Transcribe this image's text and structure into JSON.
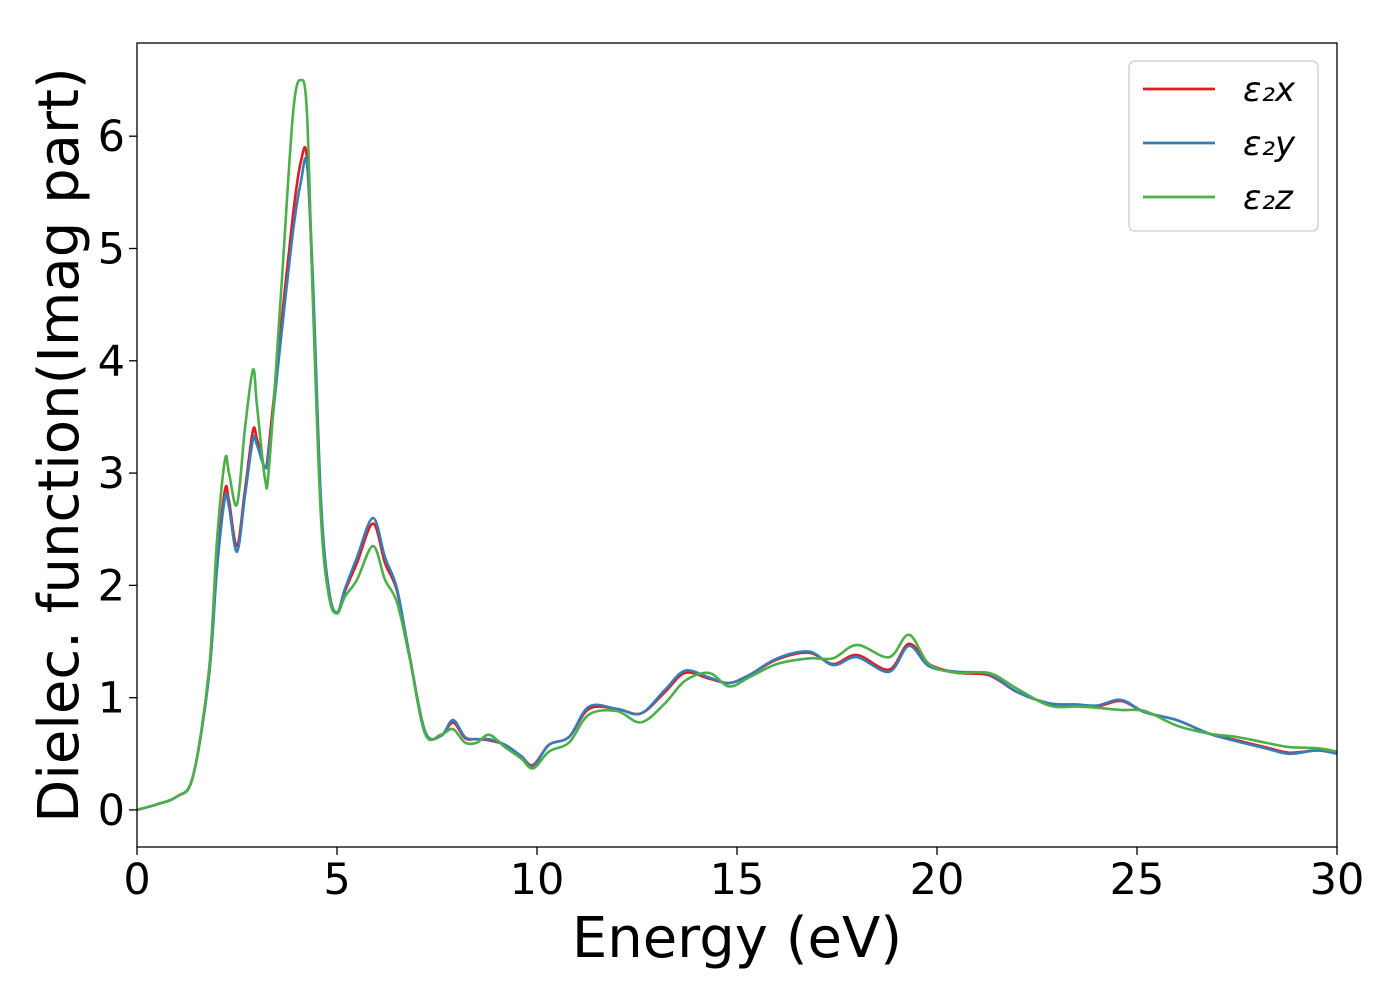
{
  "chart_data": {
    "type": "line",
    "xlabel": "Energy (eV)",
    "ylabel": "Dielec. function(Imag part)",
    "xlim": [
      0,
      30
    ],
    "ylim": [
      -0.33,
      6.83
    ],
    "x_ticks": [
      0,
      5,
      10,
      15,
      20,
      25,
      30
    ],
    "y_ticks": [
      0,
      1,
      2,
      3,
      4,
      5,
      6
    ],
    "grid": false,
    "legend_position": "top-right",
    "x": [
      0,
      0.5,
      1.0,
      1.4,
      1.8,
      2.0,
      2.2,
      2.3,
      2.5,
      2.7,
      2.9,
      3.0,
      3.2,
      3.3,
      3.6,
      3.9,
      4.1,
      4.25,
      4.4,
      4.6,
      4.8,
      5.0,
      5.2,
      5.5,
      5.9,
      6.2,
      6.5,
      6.8,
      7.2,
      7.6,
      7.9,
      8.2,
      8.5,
      8.8,
      9.2,
      9.6,
      9.9,
      10.3,
      10.8,
      11.3,
      12.0,
      12.6,
      13.2,
      13.7,
      14.3,
      14.8,
      15.3,
      16.0,
      16.8,
      17.4,
      18.0,
      18.8,
      19.3,
      19.8,
      20.5,
      21.3,
      22.0,
      22.8,
      23.5,
      24.0,
      24.6,
      25.2,
      26.0,
      26.8,
      27.5,
      28.2,
      28.8,
      29.5,
      30.0
    ],
    "series": [
      {
        "name": "ε₂x",
        "color": "#e41a1c",
        "values": [
          0.0,
          0.05,
          0.12,
          0.3,
          1.2,
          2.2,
          2.85,
          2.75,
          2.35,
          2.85,
          3.38,
          3.3,
          3.05,
          3.25,
          4.3,
          5.3,
          5.78,
          5.8,
          4.6,
          2.7,
          1.95,
          1.75,
          1.95,
          2.2,
          2.55,
          2.2,
          1.95,
          1.4,
          0.7,
          0.66,
          0.78,
          0.64,
          0.63,
          0.62,
          0.58,
          0.48,
          0.4,
          0.58,
          0.65,
          0.9,
          0.9,
          0.86,
          1.05,
          1.22,
          1.17,
          1.13,
          1.2,
          1.34,
          1.4,
          1.3,
          1.38,
          1.25,
          1.48,
          1.3,
          1.22,
          1.2,
          1.05,
          0.95,
          0.93,
          0.92,
          0.97,
          0.87,
          0.8,
          0.68,
          0.62,
          0.56,
          0.51,
          0.53,
          0.51
        ]
      },
      {
        "name": "ε₂y",
        "color": "#377eb8",
        "values": [
          0.0,
          0.05,
          0.12,
          0.3,
          1.2,
          2.15,
          2.78,
          2.7,
          2.3,
          2.8,
          3.3,
          3.25,
          3.05,
          3.2,
          4.2,
          5.15,
          5.6,
          5.75,
          4.7,
          2.75,
          1.95,
          1.76,
          1.97,
          2.25,
          2.6,
          2.25,
          1.97,
          1.4,
          0.7,
          0.66,
          0.8,
          0.65,
          0.63,
          0.63,
          0.58,
          0.48,
          0.39,
          0.58,
          0.65,
          0.92,
          0.9,
          0.86,
          1.07,
          1.24,
          1.18,
          1.13,
          1.2,
          1.35,
          1.41,
          1.29,
          1.36,
          1.23,
          1.46,
          1.28,
          1.23,
          1.21,
          1.05,
          0.95,
          0.94,
          0.93,
          0.98,
          0.87,
          0.8,
          0.68,
          0.61,
          0.55,
          0.5,
          0.53,
          0.5
        ]
      },
      {
        "name": "ε₂z",
        "color": "#4daf4a",
        "values": [
          0.0,
          0.05,
          0.12,
          0.3,
          1.25,
          2.4,
          3.12,
          3.0,
          2.72,
          3.4,
          3.92,
          3.6,
          2.95,
          3.05,
          4.6,
          6.2,
          6.5,
          6.2,
          4.5,
          2.6,
          1.9,
          1.75,
          1.9,
          2.05,
          2.35,
          2.05,
          1.85,
          1.38,
          0.68,
          0.67,
          0.72,
          0.6,
          0.6,
          0.67,
          0.56,
          0.46,
          0.37,
          0.52,
          0.6,
          0.85,
          0.88,
          0.78,
          0.95,
          1.15,
          1.22,
          1.1,
          1.18,
          1.3,
          1.35,
          1.35,
          1.47,
          1.36,
          1.56,
          1.3,
          1.22,
          1.22,
          1.08,
          0.93,
          0.92,
          0.91,
          0.89,
          0.88,
          0.75,
          0.68,
          0.65,
          0.6,
          0.56,
          0.55,
          0.52
        ]
      }
    ]
  }
}
